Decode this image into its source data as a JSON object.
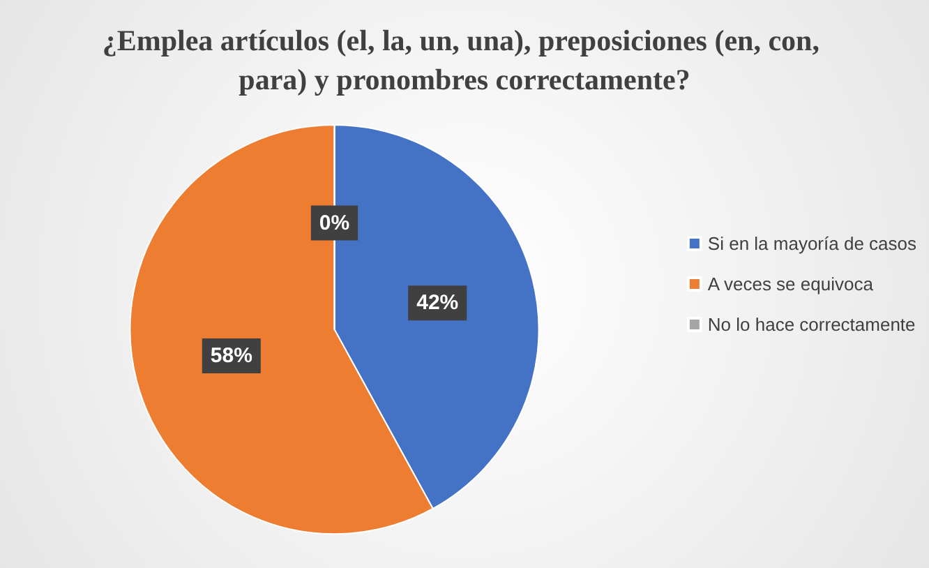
{
  "chart_data": {
    "type": "pie",
    "title": "¿Emplea artículos (el, la, un, una), preposiciones (en, con, para) y pronombres correctamente?",
    "categories": [
      "Si en la mayoría de casos",
      "A veces se equivoca",
      "No lo hace correctamente"
    ],
    "values": [
      42,
      58,
      0
    ],
    "value_labels": [
      "42%",
      "58%",
      "0%"
    ],
    "colors": [
      "#4472c4",
      "#ed7d31",
      "#a5a5a5"
    ],
    "legend": "right"
  }
}
